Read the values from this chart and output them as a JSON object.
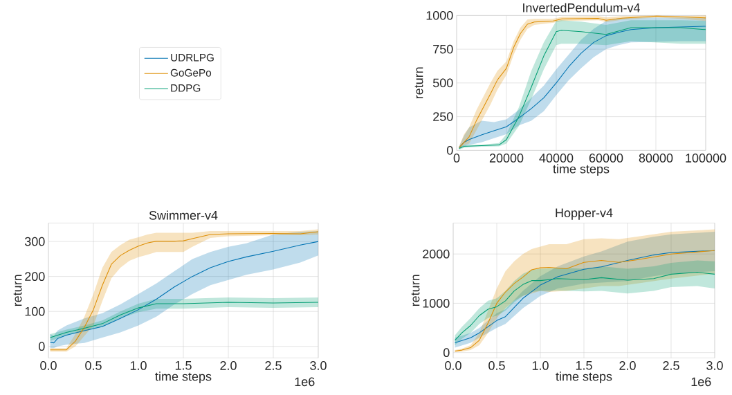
{
  "chart_data": [
    {
      "type": "line",
      "title": "InvertedPendulum-v4",
      "xlabel": "time steps",
      "ylabel": "return",
      "xlim": [
        0,
        100000
      ],
      "ylim": [
        0,
        1000
      ],
      "xticks": [
        0,
        20000,
        40000,
        60000,
        80000,
        100000
      ],
      "yticks": [
        0,
        250,
        500,
        750,
        1000
      ],
      "grid": true,
      "legend": "left",
      "marker": "none",
      "line_style": "solid",
      "series": [
        {
          "name": "UDRLPG",
          "color": "#0173b2",
          "x": [
            1000,
            3000,
            5000,
            10000,
            15000,
            20000,
            25000,
            30000,
            35000,
            40000,
            45000,
            50000,
            55000,
            60000,
            65000,
            70000,
            80000,
            90000,
            100000
          ],
          "values": [
            20,
            60,
            80,
            115,
            145,
            175,
            240,
            310,
            390,
            500,
            620,
            720,
            800,
            850,
            875,
            895,
            910,
            915,
            920
          ],
          "lower": [
            10,
            30,
            40,
            60,
            90,
            120,
            185,
            220,
            290,
            410,
            520,
            610,
            690,
            750,
            780,
            800,
            805,
            810,
            810
          ],
          "upper": [
            30,
            110,
            170,
            220,
            210,
            230,
            300,
            390,
            480,
            600,
            710,
            820,
            900,
            960,
            980,
            985,
            985,
            985,
            985
          ]
        },
        {
          "name": "GoGePo",
          "color": "#de8f05",
          "x": [
            1000,
            3000,
            5000,
            8000,
            13600,
            16400,
            20000,
            22900,
            25600,
            28400,
            31200,
            38600,
            42300,
            57000,
            60000,
            66400,
            80300,
            90000,
            100000
          ],
          "values": [
            20,
            60,
            100,
            223,
            420,
            523,
            609,
            763,
            866,
            935,
            952,
            958,
            975,
            978,
            965,
            980,
            995,
            990,
            982
          ],
          "lower": [
            10,
            40,
            50,
            150,
            340,
            450,
            560,
            710,
            820,
            900,
            930,
            945,
            960,
            965,
            950,
            968,
            985,
            975,
            960
          ],
          "upper": [
            30,
            120,
            170,
            300,
            500,
            590,
            660,
            810,
            910,
            970,
            975,
            975,
            990,
            995,
            985,
            995,
            1000,
            995,
            1000
          ]
        },
        {
          "name": "DDPG",
          "color": "#029e73",
          "x": [
            1000,
            3000,
            10000,
            17000,
            20000,
            25000,
            30000,
            35000,
            40000,
            42000,
            50000,
            60000,
            70000,
            80000,
            90000,
            100000
          ],
          "values": [
            15,
            30,
            35,
            40,
            80,
            250,
            470,
            700,
            880,
            890,
            880,
            860,
            910,
            910,
            910,
            895
          ],
          "lower": [
            5,
            20,
            28,
            30,
            50,
            180,
            380,
            600,
            780,
            790,
            790,
            780,
            810,
            800,
            790,
            790
          ],
          "upper": [
            25,
            40,
            42,
            55,
            120,
            320,
            590,
            800,
            960,
            965,
            955,
            930,
            965,
            965,
            965,
            960
          ]
        }
      ]
    },
    {
      "type": "line",
      "title": "Swimmer-v4",
      "xlabel": "time steps",
      "ylabel": "return",
      "xlim": [
        0,
        3
      ],
      "ylim": [
        -33,
        353
      ],
      "xticks": [
        {
          "value": 0,
          "label": "0.0"
        },
        0.5,
        {
          "value": 1,
          "label": "1.0"
        },
        1.5,
        {
          "value": 2,
          "label": "2.0"
        },
        2.5,
        {
          "value": 3,
          "label": "3.0"
        }
      ],
      "yticks": [
        0,
        100,
        200,
        300
      ],
      "grid": true,
      "marker": "none",
      "line_style": "solid",
      "annotations": [
        "1e6"
      ],
      "series": [
        {
          "color": "#0173b2",
          "x": [
            0.02,
            0.06,
            0.1,
            0.2,
            0.4,
            0.6,
            0.8,
            1.0,
            1.2,
            1.4,
            1.6,
            1.8,
            2.0,
            2.2,
            2.5,
            2.8,
            3.0
          ],
          "values": [
            12,
            10,
            22,
            32,
            45,
            57,
            80,
            105,
            135,
            170,
            200,
            225,
            243,
            256,
            272,
            290,
            300
          ],
          "lower": [
            -5,
            -5,
            0,
            5,
            10,
            25,
            40,
            60,
            85,
            120,
            150,
            175,
            190,
            205,
            220,
            240,
            260
          ],
          "upper": [
            35,
            30,
            45,
            60,
            80,
            95,
            120,
            150,
            180,
            215,
            250,
            270,
            285,
            295,
            320,
            328,
            330
          ]
        },
        {
          "color": "#de8f05",
          "x": [
            0.02,
            0.2,
            0.3,
            0.4,
            0.5,
            0.6,
            0.7,
            0.8,
            0.9,
            1.0,
            1.1,
            1.2,
            1.4,
            1.5,
            1.6,
            1.8,
            2.0,
            2.5,
            2.8,
            3.0
          ],
          "values": [
            -10,
            -10,
            15,
            55,
            105,
            175,
            235,
            260,
            275,
            287,
            296,
            301,
            301,
            302,
            308,
            320,
            322,
            323,
            322,
            328
          ],
          "lower": [
            -15,
            -15,
            0,
            30,
            60,
            130,
            195,
            225,
            245,
            255,
            262,
            270,
            270,
            270,
            285,
            310,
            315,
            318,
            318,
            320
          ],
          "upper": [
            -5,
            -5,
            35,
            85,
            150,
            225,
            270,
            290,
            305,
            312,
            320,
            325,
            325,
            325,
            325,
            330,
            330,
            330,
            330,
            335
          ]
        },
        {
          "color": "#029e73",
          "x": [
            0.02,
            0.2,
            0.4,
            0.6,
            0.8,
            1.0,
            1.2,
            1.5,
            2.0,
            2.5,
            3.0
          ],
          "values": [
            25,
            40,
            52,
            65,
            90,
            110,
            122,
            122,
            126,
            124,
            126
          ],
          "lower": [
            15,
            32,
            44,
            56,
            80,
            98,
            108,
            108,
            112,
            110,
            112
          ],
          "upper": [
            35,
            48,
            60,
            74,
            100,
            122,
            136,
            136,
            140,
            138,
            140
          ]
        }
      ]
    },
    {
      "type": "line",
      "title": "Hopper-v4",
      "xlabel": "time steps",
      "ylabel": "return",
      "xlim": [
        0,
        3
      ],
      "ylim": [
        -108,
        2629
      ],
      "xticks": [
        {
          "value": 0,
          "label": "0.0"
        },
        0.5,
        {
          "value": 1,
          "label": "1.0"
        },
        1.5,
        {
          "value": 2,
          "label": "2.0"
        },
        2.5,
        {
          "value": 3,
          "label": "3.0"
        }
      ],
      "yticks": [
        0,
        1000,
        2000
      ],
      "grid": true,
      "marker": "none",
      "line_style": "solid",
      "annotations": [
        "1e6"
      ],
      "series": [
        {
          "color": "#0173b2",
          "x": [
            0.02,
            0.2,
            0.3,
            0.5,
            0.6,
            0.8,
            1.0,
            1.2,
            1.5,
            1.7,
            2.0,
            2.3,
            2.5,
            3.0
          ],
          "values": [
            200,
            300,
            400,
            650,
            730,
            1100,
            1370,
            1540,
            1690,
            1740,
            1870,
            1980,
            2030,
            2070
          ],
          "lower": [
            100,
            200,
            300,
            500,
            580,
            900,
            1150,
            1300,
            1400,
            1420,
            1450,
            1550,
            1600,
            1650
          ],
          "upper": [
            300,
            400,
            500,
            800,
            880,
            1250,
            1550,
            1750,
            1950,
            2050,
            2250,
            2350,
            2400,
            2450
          ]
        },
        {
          "color": "#de8f05",
          "x": [
            0.02,
            0.1,
            0.2,
            0.3,
            0.4,
            0.5,
            0.6,
            0.7,
            0.8,
            0.9,
            1.0,
            1.1,
            1.3,
            1.5,
            1.7,
            1.9,
            2.1,
            2.5,
            3.0
          ],
          "values": [
            30,
            50,
            100,
            250,
            600,
            1000,
            1230,
            1400,
            1530,
            1680,
            1720,
            1730,
            1700,
            1830,
            1870,
            1830,
            1880,
            2000,
            2070
          ],
          "lower": [
            10,
            20,
            50,
            150,
            400,
            700,
            900,
            1050,
            1150,
            1200,
            1250,
            1230,
            1250,
            1300,
            1350,
            1350,
            1400,
            1500,
            1600
          ],
          "upper": [
            50,
            80,
            150,
            400,
            850,
            1300,
            1650,
            1850,
            2000,
            2100,
            2150,
            2200,
            2200,
            2300,
            2320,
            2300,
            2350,
            2450,
            2500
          ]
        },
        {
          "color": "#029e73",
          "x": [
            0.02,
            0.1,
            0.2,
            0.3,
            0.4,
            0.5,
            0.6,
            0.7,
            0.8,
            0.9,
            1.0,
            1.2,
            1.5,
            1.7,
            2.0,
            2.3,
            2.5,
            2.8,
            3.0
          ],
          "values": [
            250,
            400,
            550,
            750,
            880,
            930,
            1050,
            1250,
            1380,
            1460,
            1460,
            1500,
            1480,
            1520,
            1470,
            1500,
            1590,
            1630,
            1590
          ],
          "lower": [
            150,
            280,
            400,
            580,
            700,
            750,
            850,
            1020,
            1150,
            1230,
            1250,
            1260,
            1240,
            1250,
            1200,
            1250,
            1330,
            1350,
            1300
          ],
          "upper": [
            350,
            520,
            700,
            900,
            1050,
            1100,
            1250,
            1450,
            1600,
            1680,
            1700,
            1720,
            1700,
            1750,
            1700,
            1750,
            1820,
            1870,
            1850
          ]
        }
      ]
    }
  ]
}
